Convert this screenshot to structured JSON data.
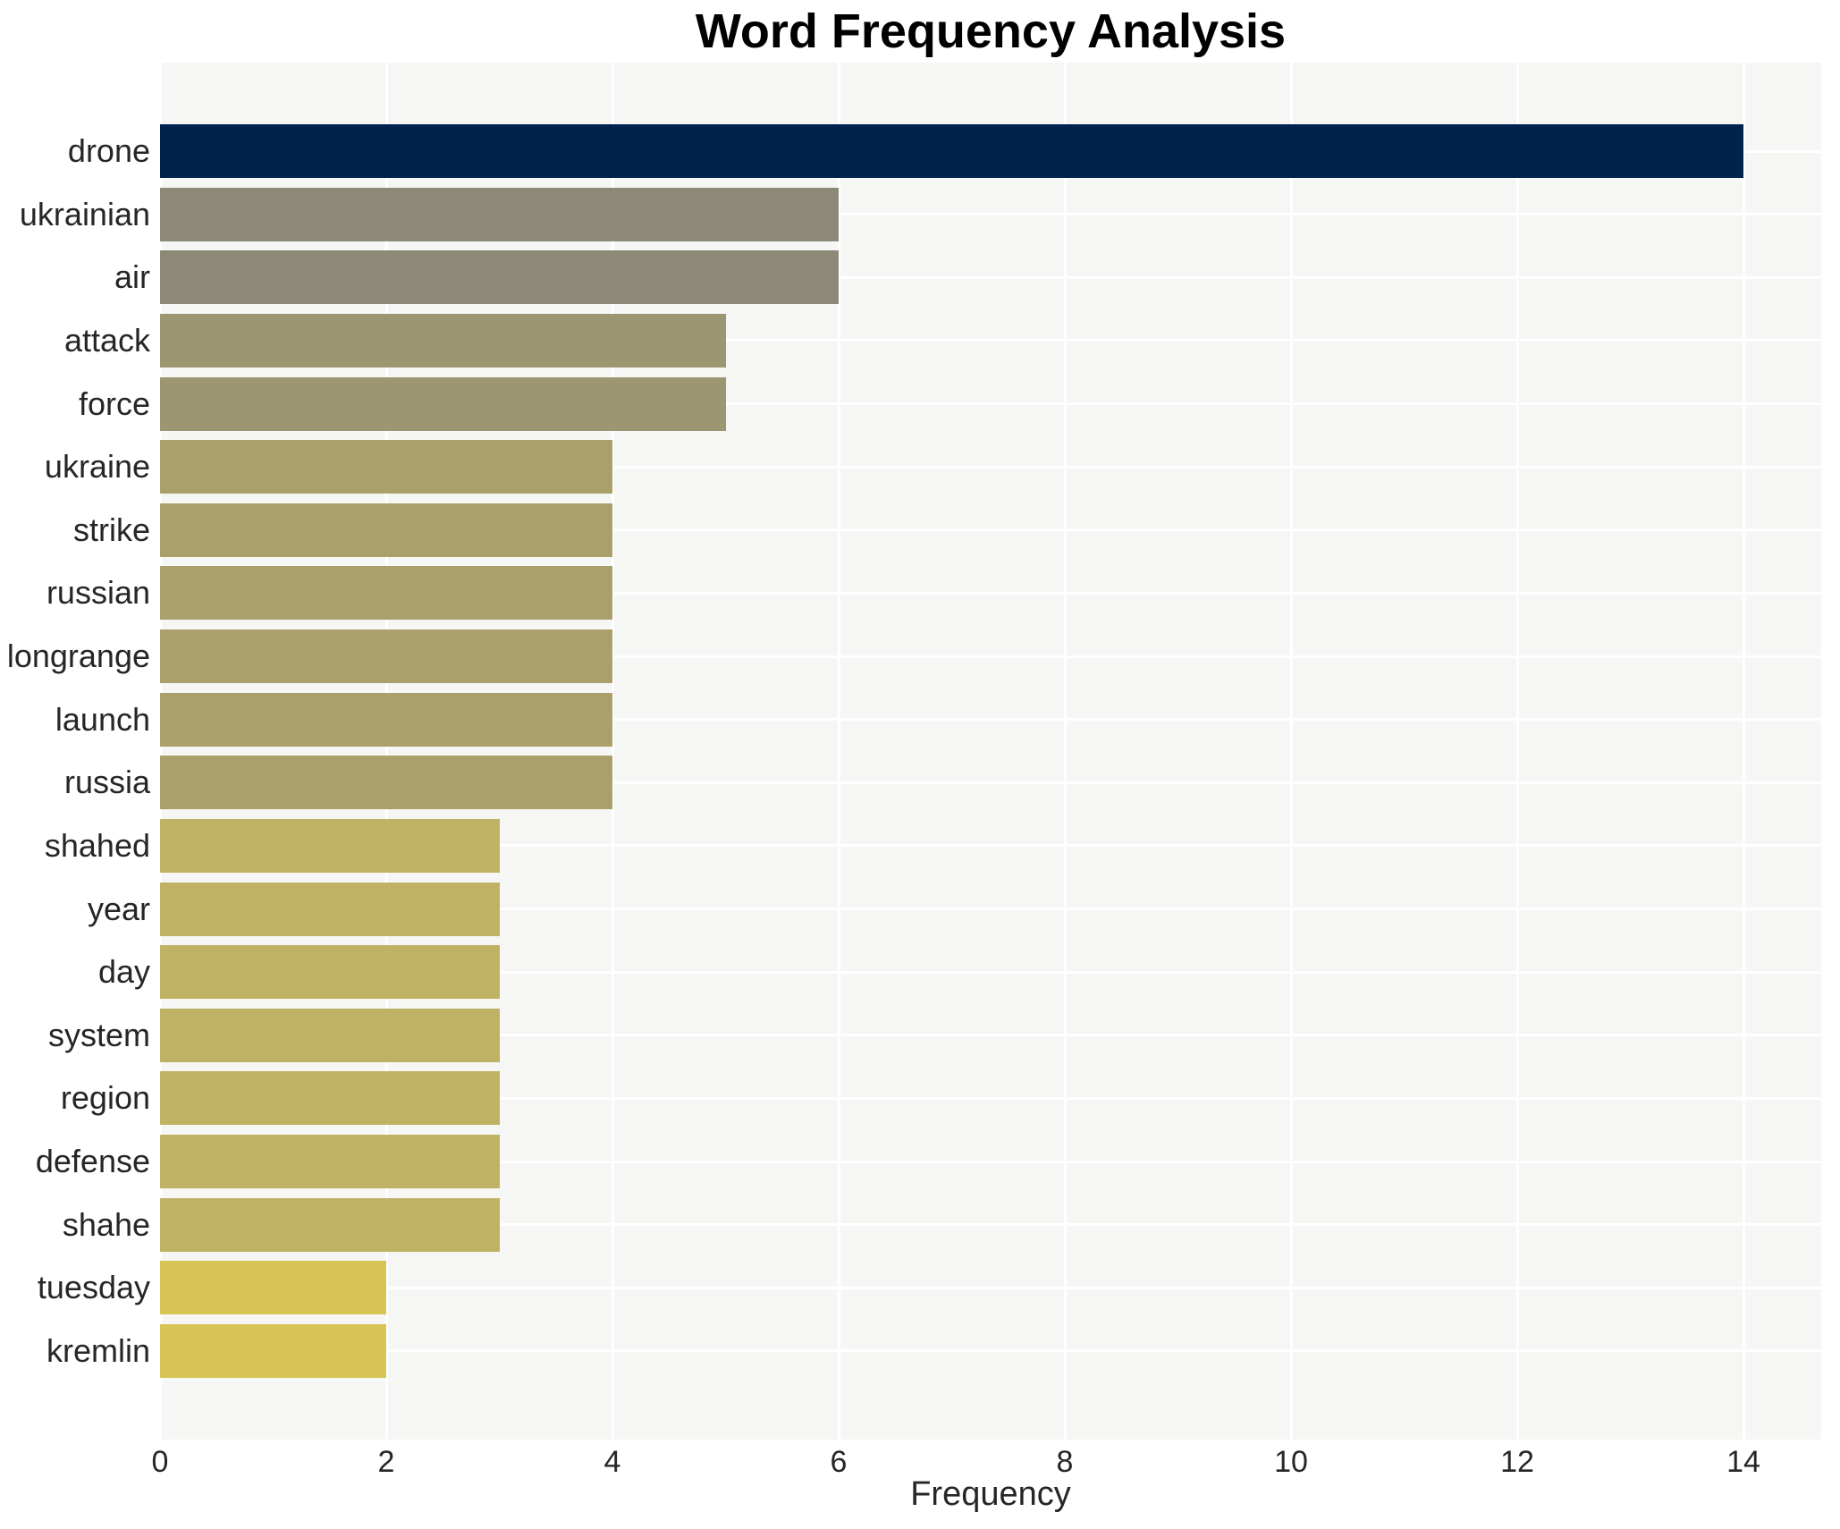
{
  "title": "Word Frequency Analysis",
  "chart_data": {
    "type": "bar",
    "orientation": "horizontal",
    "title": "Word Frequency Analysis",
    "xlabel": "Frequency",
    "ylabel": "",
    "categories": [
      "drone",
      "ukrainian",
      "air",
      "attack",
      "force",
      "ukraine",
      "strike",
      "russian",
      "longrange",
      "launch",
      "russia",
      "shahed",
      "year",
      "day",
      "system",
      "region",
      "defense",
      "shahe",
      "tuesday",
      "kremlin"
    ],
    "values": [
      14,
      6,
      6,
      5,
      5,
      4,
      4,
      4,
      4,
      4,
      4,
      3,
      3,
      3,
      3,
      3,
      3,
      3,
      2,
      2
    ],
    "bar_colors": [
      "#00224d",
      "#8c8978",
      "#8c8978",
      "#9d9672",
      "#9d9672",
      "#aaa06b",
      "#aaa06b",
      "#aaa06b",
      "#aaa06b",
      "#aaa06b",
      "#aaa06b",
      "#c0b264",
      "#c0b264",
      "#c0b264",
      "#c0b264",
      "#c0b264",
      "#c0b264",
      "#c0b264",
      "#d6c455",
      "#d6c455"
    ],
    "xticks": [
      0,
      2,
      4,
      6,
      8,
      10,
      12,
      14
    ],
    "xlim": [
      0,
      14.7
    ],
    "grid": true,
    "legend_position": "none",
    "plot_background": "#f6f6f4",
    "gridline_color": "#ffffff",
    "text_color": "#262626",
    "title_color": "#000000"
  }
}
